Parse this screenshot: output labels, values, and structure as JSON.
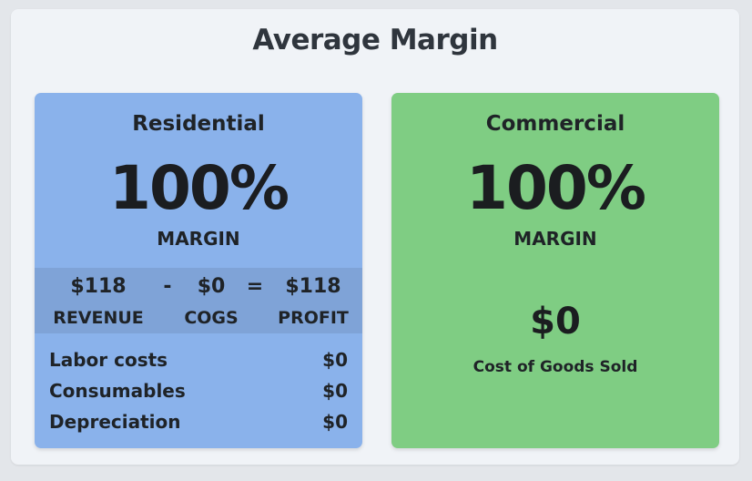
{
  "title": "Average Margin",
  "residential": {
    "title": "Residential",
    "margin_value": "100%",
    "margin_label": "MARGIN",
    "revenue_value": "$118",
    "revenue_label": "REVENUE",
    "minus": "-",
    "cogs_value": "$0",
    "cogs_label": "COGS",
    "equals": "=",
    "profit_value": "$118",
    "profit_label": "PROFIT",
    "breakdown": [
      {
        "label": "Labor costs",
        "value": "$0"
      },
      {
        "label": "Consumables",
        "value": "$0"
      },
      {
        "label": "Depreciation",
        "value": "$0"
      }
    ]
  },
  "commercial": {
    "title": "Commercial",
    "margin_value": "100%",
    "margin_label": "MARGIN",
    "cogs_value": "$0",
    "cogs_label": "Cost of Goods Sold"
  },
  "colors": {
    "residential_bg": "#8ab2eb",
    "residential_band": "#7fa3d7",
    "commercial_bg": "#7fcd83",
    "panel_bg": "#f0f3f7"
  }
}
